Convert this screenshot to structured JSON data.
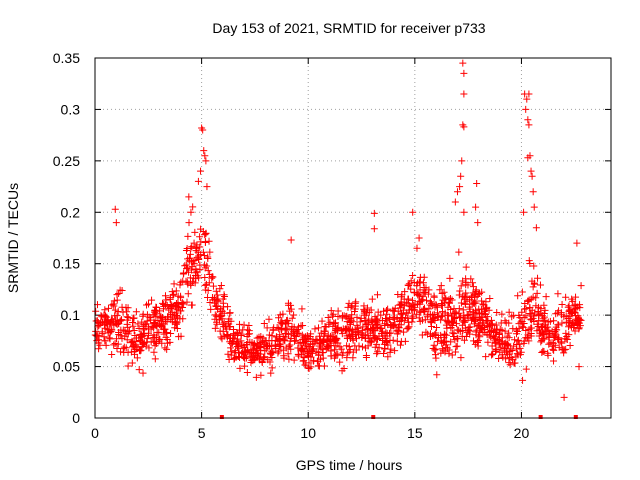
{
  "chart_data": {
    "type": "scatter",
    "title": "Day 153 of 2021, SRMTID for receiver p733",
    "xlabel": "GPS time / hours",
    "ylabel": "SRMTID / TECUs",
    "xlim": [
      0,
      24.2
    ],
    "ylim": [
      0,
      0.35
    ],
    "x_ticks": [
      0,
      5,
      10,
      15,
      20
    ],
    "x_tick_labels": [
      "0",
      "5",
      "10",
      "15",
      "20"
    ],
    "y_ticks": [
      0,
      0.05,
      0.1,
      0.15,
      0.2,
      0.25,
      0.3,
      0.35
    ],
    "y_tick_labels": [
      "0",
      "0.05",
      "0.1",
      "0.15",
      "0.2",
      "0.25",
      "0.3",
      "0.35"
    ],
    "grid": true,
    "marker": "+",
    "color": "#ff0000",
    "envelope_hours": [
      0,
      0.5,
      1,
      1.5,
      2,
      2.5,
      3,
      3.5,
      4,
      4.3,
      4.6,
      5,
      5.3,
      5.6,
      6,
      6.5,
      7,
      7.5,
      8,
      8.5,
      9,
      9.5,
      10,
      10.5,
      11,
      11.5,
      12,
      12.5,
      13,
      13.5,
      14,
      14.5,
      15,
      15.5,
      16,
      16.5,
      17,
      17.5,
      18,
      18.5,
      19,
      19.5,
      20,
      20.5,
      21,
      21.5,
      22,
      22.5
    ],
    "envelope_median": [
      0.085,
      0.09,
      0.095,
      0.08,
      0.075,
      0.085,
      0.09,
      0.1,
      0.11,
      0.14,
      0.15,
      0.16,
      0.14,
      0.11,
      0.1,
      0.075,
      0.07,
      0.065,
      0.07,
      0.075,
      0.085,
      0.08,
      0.065,
      0.07,
      0.075,
      0.08,
      0.085,
      0.09,
      0.085,
      0.08,
      0.09,
      0.1,
      0.12,
      0.11,
      0.09,
      0.09,
      0.1,
      0.11,
      0.1,
      0.085,
      0.075,
      0.07,
      0.085,
      0.11,
      0.085,
      0.08,
      0.09,
      0.1
    ],
    "envelope_spread": [
      0.025,
      0.025,
      0.035,
      0.03,
      0.03,
      0.03,
      0.03,
      0.03,
      0.03,
      0.04,
      0.045,
      0.06,
      0.04,
      0.035,
      0.03,
      0.025,
      0.025,
      0.02,
      0.025,
      0.03,
      0.03,
      0.03,
      0.025,
      0.025,
      0.025,
      0.03,
      0.03,
      0.03,
      0.03,
      0.03,
      0.03,
      0.03,
      0.035,
      0.035,
      0.035,
      0.04,
      0.045,
      0.04,
      0.035,
      0.03,
      0.025,
      0.025,
      0.04,
      0.05,
      0.03,
      0.03,
      0.03,
      0.025
    ],
    "n_points": 1800,
    "spike_points": [
      {
        "x": 5.0,
        "y": 0.282
      },
      {
        "x": 5.05,
        "y": 0.28
      },
      {
        "x": 5.1,
        "y": 0.26
      },
      {
        "x": 5.15,
        "y": 0.255
      },
      {
        "x": 4.95,
        "y": 0.24
      },
      {
        "x": 5.2,
        "y": 0.25
      },
      {
        "x": 5.25,
        "y": 0.225
      },
      {
        "x": 4.85,
        "y": 0.23
      },
      {
        "x": 4.4,
        "y": 0.215
      },
      {
        "x": 4.5,
        "y": 0.2
      },
      {
        "x": 0.95,
        "y": 0.203
      },
      {
        "x": 1.0,
        "y": 0.19
      },
      {
        "x": 9.2,
        "y": 0.173
      },
      {
        "x": 13.1,
        "y": 0.199
      },
      {
        "x": 13.1,
        "y": 0.184
      },
      {
        "x": 14.9,
        "y": 0.2
      },
      {
        "x": 15.2,
        "y": 0.175
      },
      {
        "x": 15.1,
        "y": 0.165
      },
      {
        "x": 16.9,
        "y": 0.21
      },
      {
        "x": 17.0,
        "y": 0.22
      },
      {
        "x": 17.25,
        "y": 0.345
      },
      {
        "x": 17.3,
        "y": 0.335
      },
      {
        "x": 17.3,
        "y": 0.315
      },
      {
        "x": 17.25,
        "y": 0.285
      },
      {
        "x": 17.3,
        "y": 0.283
      },
      {
        "x": 17.2,
        "y": 0.25
      },
      {
        "x": 17.15,
        "y": 0.235
      },
      {
        "x": 17.1,
        "y": 0.225
      },
      {
        "x": 17.3,
        "y": 0.2
      },
      {
        "x": 17.9,
        "y": 0.228
      },
      {
        "x": 17.85,
        "y": 0.205
      },
      {
        "x": 17.95,
        "y": 0.19
      },
      {
        "x": 20.15,
        "y": 0.315
      },
      {
        "x": 20.25,
        "y": 0.31
      },
      {
        "x": 20.35,
        "y": 0.315
      },
      {
        "x": 20.2,
        "y": 0.3
      },
      {
        "x": 20.3,
        "y": 0.29
      },
      {
        "x": 20.35,
        "y": 0.285
      },
      {
        "x": 20.4,
        "y": 0.255
      },
      {
        "x": 20.3,
        "y": 0.253
      },
      {
        "x": 20.45,
        "y": 0.24
      },
      {
        "x": 20.5,
        "y": 0.235
      },
      {
        "x": 20.55,
        "y": 0.22
      },
      {
        "x": 20.6,
        "y": 0.205
      },
      {
        "x": 20.1,
        "y": 0.2
      },
      {
        "x": 20.7,
        "y": 0.185
      },
      {
        "x": 22.0,
        "y": 0.02
      },
      {
        "x": 22.6,
        "y": 0.17
      },
      {
        "x": 22.7,
        "y": 0.05
      }
    ],
    "baseline_markers": [
      5.95,
      13.05,
      20.9,
      22.55
    ]
  }
}
